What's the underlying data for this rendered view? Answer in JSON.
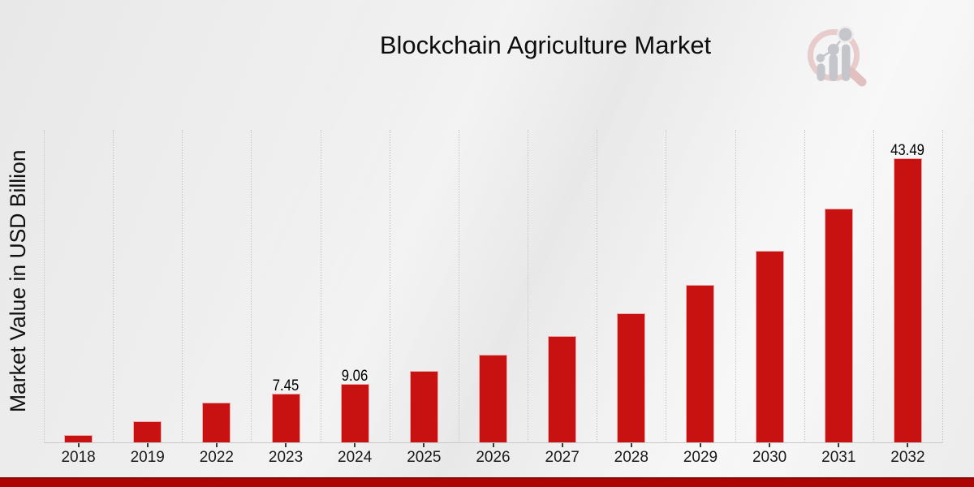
{
  "chart_data": {
    "type": "bar",
    "title": "Blockchain Agriculture Market",
    "ylabel": "Market Value in USD Billion",
    "categories": [
      "2018",
      "2019",
      "2022",
      "2023",
      "2024",
      "2025",
      "2026",
      "2027",
      "2028",
      "2029",
      "2030",
      "2031",
      "2032"
    ],
    "values": [
      1.12,
      3.32,
      6.1,
      7.45,
      9.06,
      11.02,
      13.41,
      16.32,
      19.85,
      24.16,
      29.39,
      35.76,
      43.49
    ],
    "data_labels": {
      "2023": "7.45",
      "2024": "9.06",
      "2032": "43.49"
    },
    "xlabel": "",
    "ylim": [
      0,
      47.9
    ],
    "grid": "vertical-dotted",
    "legend": "none",
    "bar_color": "#c81111"
  },
  "colors": {
    "bar": "#c81111",
    "footer_bar": "#ad0404",
    "footer_bar_edge": "#8a0808",
    "gridline": "#c6c6c6",
    "tick": "#3a3a3a",
    "text": "#111111",
    "logo_pink": "#e8cbcb",
    "logo_gray": "#c5c6cb"
  },
  "logo": {
    "name": "market-research-magnifier-logo"
  }
}
